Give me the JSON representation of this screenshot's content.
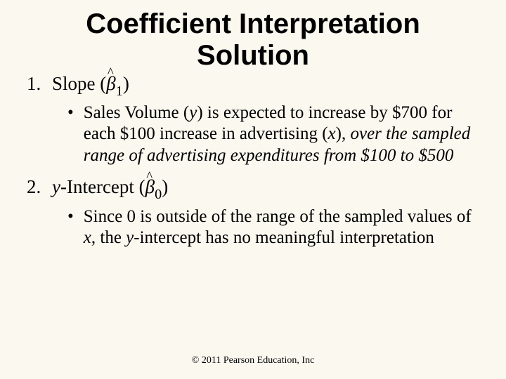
{
  "colors": {
    "background": "#faf8ef",
    "text": "#000000"
  },
  "typography": {
    "title_font": "Arial",
    "title_size_pt": 30,
    "title_weight": "bold",
    "body_font": "Times New Roman",
    "list_size_pt": 20,
    "sublist_size_pt": 19,
    "footer_size_pt": 10
  },
  "title_line1": "Coefficient Interpretation",
  "title_line2": "Solution",
  "item1": {
    "num": "1.",
    "label_pre": "Slope (",
    "beta": "β",
    "hat": "^",
    "sub": "1",
    "label_post": ")",
    "bullet": "•",
    "sub_text_1": "Sales Volume (",
    "sub_var_y": "y",
    "sub_text_2": ") is expected to increase by $700 for each $100 increase in advertising (",
    "sub_var_x": "x",
    "sub_text_3": "), ",
    "sub_text_italic": "over the sampled range of advertising expenditures from $100 to $500"
  },
  "item2": {
    "num": "2.",
    "label_pre_var": "y",
    "label_pre_txt": "-Intercept (",
    "beta": "β",
    "hat": "^",
    "sub": "0",
    "label_post": ")",
    "bullet": "•",
    "sub_text_1": "Since 0 is outside of the range of the sampled values of ",
    "sub_var_x": "x",
    "sub_text_2": ", the ",
    "sub_var_y": "y",
    "sub_text_3": "-intercept has no meaningful interpretation"
  },
  "footer": "© 2011 Pearson Education, Inc"
}
